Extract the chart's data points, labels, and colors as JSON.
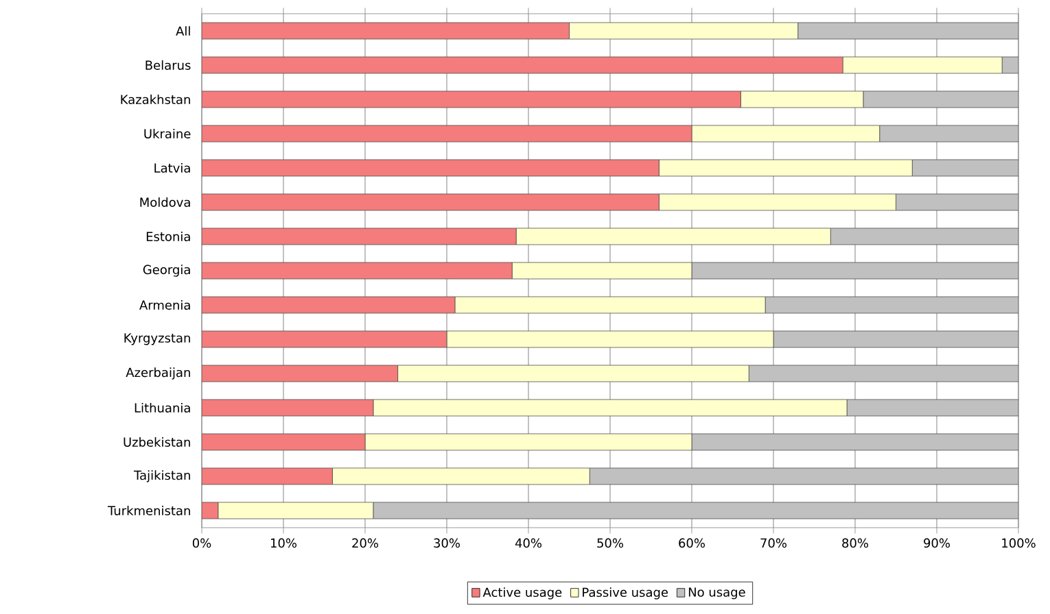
{
  "chart_data": {
    "type": "bar",
    "orientation": "horizontal",
    "stacked": true,
    "grid": "x",
    "legend": "bottom",
    "categories": [
      "All",
      "Belarus",
      "Kazakhstan",
      "Ukraine",
      "Latvia",
      "Moldova",
      "Estonia",
      "Georgia",
      "Armenia",
      "Kyrgyzstan",
      "Azerbaijan",
      "Lithuania",
      "Uzbekistan",
      "Tajikistan",
      "Turkmenistan"
    ],
    "series": [
      {
        "name": "Active usage",
        "color": "#f47c7c",
        "values": [
          45,
          78.5,
          66,
          60,
          56,
          56,
          38.5,
          38,
          31,
          30,
          24,
          21,
          20,
          16,
          2
        ]
      },
      {
        "name": "Passive usage",
        "color": "#ffffcc",
        "values": [
          28,
          19.5,
          15,
          23,
          31,
          29,
          38.5,
          22,
          38,
          40,
          43,
          58,
          40,
          31.5,
          19
        ]
      },
      {
        "name": "No usage",
        "color": "#c0c0c0",
        "values": [
          27,
          2,
          19,
          17,
          13,
          15,
          23,
          40,
          31,
          30,
          33,
          21,
          40,
          52.5,
          79
        ]
      }
    ],
    "xlim": [
      0,
      100
    ],
    "xticks": [
      {
        "value": 0,
        "label": "0%"
      },
      {
        "value": 10,
        "label": "10%"
      },
      {
        "value": 20,
        "label": "20%"
      },
      {
        "value": 30,
        "label": "30%"
      },
      {
        "value": 40,
        "label": "40%"
      },
      {
        "value": 50,
        "label": "50%"
      },
      {
        "value": 60,
        "label": "60%"
      },
      {
        "value": 70,
        "label": "70%"
      },
      {
        "value": 80,
        "label": "80%"
      },
      {
        "value": 90,
        "label": "90%"
      },
      {
        "value": 100,
        "label": "100%"
      }
    ]
  }
}
